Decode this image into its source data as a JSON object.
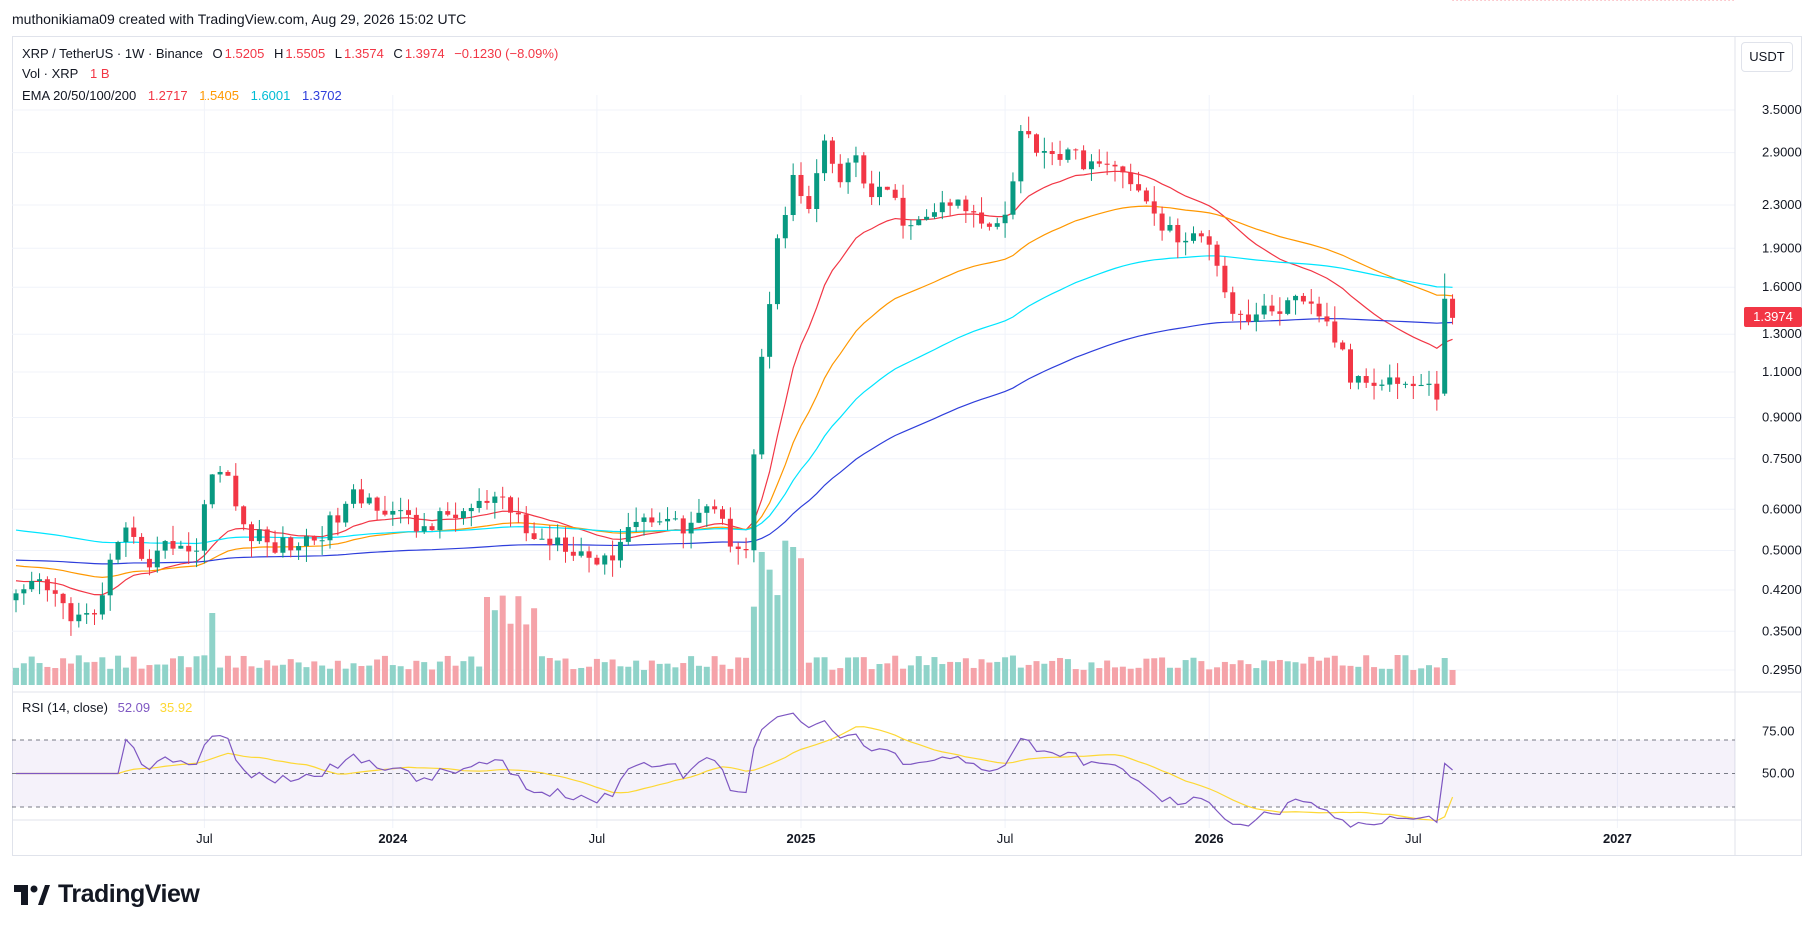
{
  "header": {
    "attribution": "muthonikiama09 created with TradingView.com, Aug 29, 2026 15:02 UTC"
  },
  "legend": {
    "symbol": "XRP / TetherUS · 1W · Binance",
    "o_label": "O",
    "o_value": "1.5205",
    "h_label": "H",
    "h_value": "1.5505",
    "l_label": "L",
    "l_value": "1.3574",
    "c_label": "C",
    "c_value": "1.3974",
    "change": "−0.1230 (−8.09%)",
    "vol_label": "Vol · XRP",
    "vol_value": "1 B",
    "ema_label": "EMA 20/50/100/200",
    "ema20": "1.2717",
    "ema50": "1.5405",
    "ema100": "1.6001",
    "ema200": "1.3702"
  },
  "rsi_legend": {
    "label": "RSI (14, close)",
    "rsi": "52.09",
    "ma": "35.92"
  },
  "currency_button": "USDT",
  "last_price_tag": "1.3974",
  "logo": {
    "text": "TradingView"
  },
  "colors": {
    "up": "#089981",
    "down": "#f23645",
    "ema20": "#f23645",
    "ema50": "#ff9800",
    "ema100": "#00e5ff",
    "ema200": "#2e3edb",
    "rsi": "#7e57c2",
    "rsi_ma": "#fdd835",
    "vol_up": "#8fd3c9",
    "vol_down": "#f5a3a9"
  },
  "chart_data": {
    "type": "candlestick",
    "scale": "log",
    "timeframe": "1W",
    "price_axis_ticks": [
      3.5,
      2.9,
      2.3,
      1.9,
      1.6,
      1.3,
      1.1,
      0.9,
      0.75,
      0.6,
      0.5,
      0.42,
      0.35,
      0.295
    ],
    "price_axis_labels": [
      "3.5000",
      "2.9000",
      "2.3000",
      "1.9000",
      "1.6000",
      "1.3000",
      "1.1000",
      "0.9000",
      "0.7500",
      "0.6000",
      "0.5000",
      "0.4200",
      "0.3500",
      "0.2950"
    ],
    "time_axis_labels": [
      "Jul",
      "2024",
      "Jul",
      "2025",
      "Jul",
      "2026",
      "Jul",
      "2027"
    ],
    "time_axis_bold": [
      false,
      true,
      false,
      true,
      false,
      true,
      false,
      true
    ],
    "time_axis_bar_index": [
      24,
      48,
      74,
      100,
      126,
      152,
      178,
      204
    ],
    "rsi_axis_labels": [
      "75.00",
      "50.00"
    ],
    "rsi_levels": [
      70,
      50,
      30
    ],
    "anchors": [
      [
        0,
        0.4
      ],
      [
        3,
        0.43
      ],
      [
        8,
        0.37
      ],
      [
        10,
        0.37
      ],
      [
        12,
        0.47
      ],
      [
        14,
        0.53
      ],
      [
        17,
        0.48
      ],
      [
        20,
        0.52
      ],
      [
        23,
        0.5
      ],
      [
        25,
        0.73
      ],
      [
        27,
        0.68
      ],
      [
        29,
        0.55
      ],
      [
        33,
        0.51
      ],
      [
        37,
        0.52
      ],
      [
        40,
        0.56
      ],
      [
        43,
        0.63
      ],
      [
        46,
        0.62
      ],
      [
        48,
        0.6
      ],
      [
        51,
        0.55
      ],
      [
        55,
        0.58
      ],
      [
        58,
        0.6
      ],
      [
        61,
        0.62
      ],
      [
        64,
        0.58
      ],
      [
        66,
        0.52
      ],
      [
        69,
        0.53
      ],
      [
        72,
        0.5
      ],
      [
        75,
        0.47
      ],
      [
        78,
        0.56
      ],
      [
        82,
        0.59
      ],
      [
        85,
        0.55
      ],
      [
        88,
        0.61
      ],
      [
        91,
        0.53
      ],
      [
        93,
        0.51
      ],
      [
        95,
        1.15
      ],
      [
        97,
        2.05
      ],
      [
        99,
        2.55
      ],
      [
        101,
        2.25
      ],
      [
        103,
        2.95
      ],
      [
        105,
        2.55
      ],
      [
        107,
        2.85
      ],
      [
        109,
        2.35
      ],
      [
        111,
        2.45
      ],
      [
        114,
        2.05
      ],
      [
        117,
        2.25
      ],
      [
        120,
        2.3
      ],
      [
        123,
        2.15
      ],
      [
        126,
        2.2
      ],
      [
        128,
        3.15
      ],
      [
        131,
        2.95
      ],
      [
        134,
        2.85
      ],
      [
        137,
        2.8
      ],
      [
        139,
        2.65
      ],
      [
        141,
        2.75
      ],
      [
        143,
        2.4
      ],
      [
        146,
        2.1
      ],
      [
        149,
        1.95
      ],
      [
        152,
        2.0
      ],
      [
        155,
        1.45
      ],
      [
        157,
        1.4
      ],
      [
        160,
        1.45
      ],
      [
        163,
        1.48
      ],
      [
        166,
        1.43
      ],
      [
        168,
        1.28
      ],
      [
        170,
        1.07
      ],
      [
        173,
        1.08
      ],
      [
        176,
        1.06
      ],
      [
        179,
        1.03
      ],
      [
        181,
        1.0
      ],
      [
        182,
        1.5205
      ],
      [
        183,
        1.3974
      ]
    ],
    "last_candle": {
      "open": 1.5205,
      "high": 1.5505,
      "low": 1.3574,
      "close": 1.3974
    },
    "ema_last": {
      "ema20": 1.2717,
      "ema50": 1.5405,
      "ema100": 1.6001,
      "ema200": 1.3702
    },
    "ema_start": {
      "ema20": 0.44,
      "ema50": 0.47,
      "ema100": 0.55,
      "ema200": 0.48
    },
    "rsi_last": 52.09,
    "rsi_ma_last": 35.92,
    "volume_last_label": "1 B"
  }
}
